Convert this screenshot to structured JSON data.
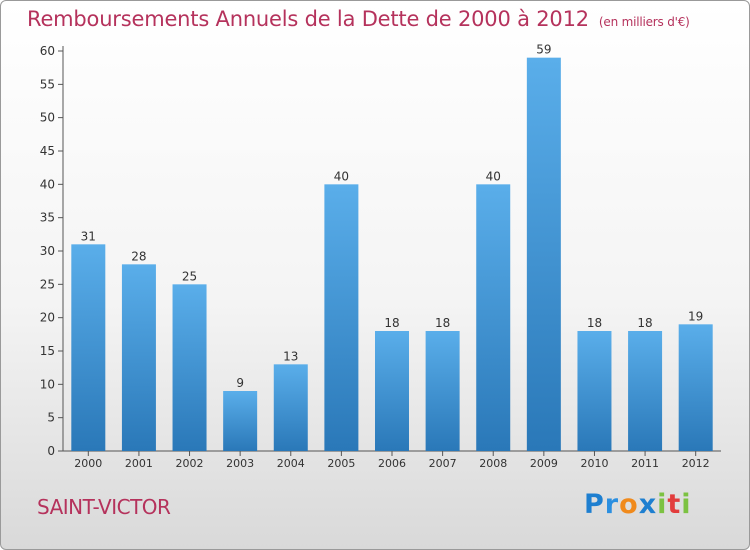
{
  "chart_data": {
    "type": "bar",
    "title": "Remboursements Annuels de la Dette de 2000 à 2012",
    "subtitle": "(en milliers d'€)",
    "categories": [
      "2000",
      "2001",
      "2002",
      "2003",
      "2004",
      "2005",
      "2006",
      "2007",
      "2008",
      "2009",
      "2010",
      "2011",
      "2012"
    ],
    "values": [
      31,
      28,
      25,
      9,
      13,
      40,
      18,
      18,
      40,
      59,
      18,
      18,
      19
    ],
    "xlabel": "",
    "ylabel": "",
    "ylim": [
      0,
      60
    ],
    "yticks": [
      0,
      5,
      10,
      15,
      20,
      25,
      30,
      35,
      40,
      45,
      50,
      55,
      60
    ],
    "grid": false,
    "legend": "none",
    "bar_color_top": "#5aaeea",
    "bar_color_bottom": "#2a78b8"
  },
  "commune": "SAINT-VICTOR",
  "logo": {
    "letters": [
      "P",
      "r",
      "o",
      "x",
      "i",
      "t",
      "i"
    ],
    "colors": [
      "#1e7fd0",
      "#2b8fe0",
      "#f08a1c",
      "#1e7fd0",
      "#7cc242",
      "#e23c3c",
      "#7cc242"
    ]
  }
}
